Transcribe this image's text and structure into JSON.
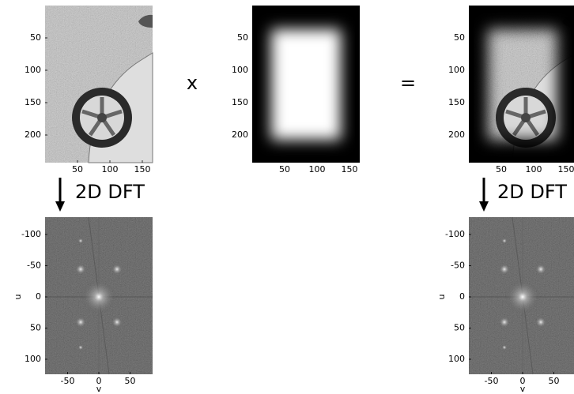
{
  "operators": {
    "multiply": "x",
    "equals": "="
  },
  "arrows": [
    {
      "label": "2D DFT"
    },
    {
      "label": "2D DFT"
    }
  ],
  "panels": [
    {
      "yticks": [
        50,
        100,
        150,
        200
      ],
      "xticks": [
        50,
        100,
        150
      ]
    },
    {
      "yticks": [
        50,
        100,
        150,
        200
      ],
      "xticks": [
        50,
        100,
        150
      ]
    },
    {
      "yticks": [
        50,
        100,
        150,
        200
      ],
      "xticks": [
        50,
        100,
        150
      ]
    }
  ],
  "spectra": [
    {
      "yticks": [
        -100,
        -50,
        0,
        50,
        100
      ],
      "xticks": [
        -50,
        0,
        50
      ],
      "ylabel": "u",
      "xlabel": "v"
    },
    {
      "yticks": [
        -100,
        -50,
        0,
        50,
        100
      ],
      "xticks": [
        -50,
        0,
        50
      ],
      "ylabel": "u",
      "xlabel": "v"
    }
  ]
}
